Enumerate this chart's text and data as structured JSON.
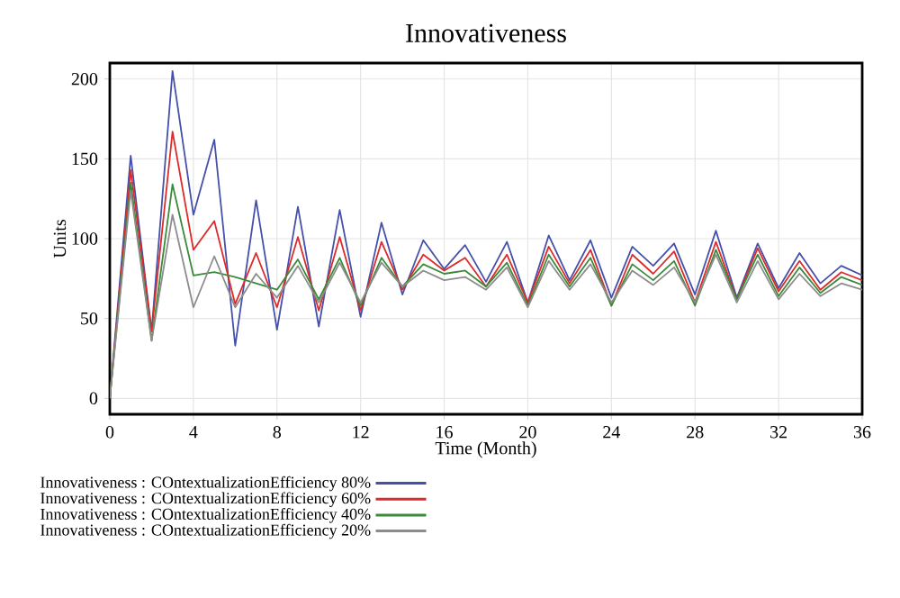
{
  "chart_data": {
    "type": "line",
    "title": "Innovativeness",
    "xlabel": "Time (Month)",
    "ylabel": "Units",
    "x": [
      0,
      1,
      2,
      3,
      4,
      5,
      6,
      7,
      8,
      9,
      10,
      11,
      12,
      13,
      14,
      15,
      16,
      17,
      18,
      19,
      20,
      21,
      22,
      23,
      24,
      25,
      26,
      27,
      28,
      29,
      30,
      31,
      32,
      33,
      34,
      35,
      36
    ],
    "series": [
      {
        "name": "Innovativeness : COntextualizationEfficiency 80%",
        "color": "#4450aa",
        "values": [
          0,
          152,
          42,
          205,
          115,
          162,
          33,
          124,
          43,
          120,
          45,
          118,
          51,
          110,
          65,
          99,
          81,
          96,
          73,
          98,
          60,
          102,
          74,
          99,
          63,
          95,
          83,
          97,
          65,
          105,
          63,
          97,
          69,
          91,
          72,
          83,
          77
        ]
      },
      {
        "name": "Innovativeness : COntextualizationEfficiency 60%",
        "color": "#dd2a2a",
        "values": [
          0,
          143,
          42,
          167,
          93,
          111,
          59,
          91,
          57,
          101,
          55,
          101,
          55,
          98,
          68,
          90,
          80,
          88,
          70,
          90,
          60,
          95,
          72,
          93,
          58,
          90,
          78,
          92,
          60,
          98,
          62,
          94,
          67,
          86,
          68,
          79,
          74
        ]
      },
      {
        "name": "Innovativeness : COntextualizationEfficiency 40%",
        "color": "#3a8a3a",
        "values": [
          0,
          135,
          36,
          134,
          77,
          79,
          76,
          72,
          68,
          87,
          62,
          88,
          58,
          88,
          70,
          84,
          78,
          80,
          70,
          85,
          58,
          90,
          70,
          88,
          58,
          84,
          74,
          86,
          58,
          93,
          62,
          90,
          64,
          82,
          66,
          76,
          71
        ]
      },
      {
        "name": "Innovativeness : COntextualizationEfficiency 20%",
        "color": "#8c8c8c",
        "values": [
          0,
          130,
          36,
          115,
          57,
          89,
          57,
          78,
          63,
          83,
          60,
          85,
          60,
          85,
          70,
          80,
          74,
          76,
          68,
          82,
          57,
          86,
          68,
          84,
          60,
          80,
          71,
          82,
          60,
          90,
          60,
          86,
          62,
          78,
          64,
          72,
          68
        ]
      }
    ],
    "xlim": [
      0,
      36
    ],
    "ylim": [
      -10,
      210
    ],
    "xticks": [
      0,
      4,
      8,
      12,
      16,
      20,
      24,
      28,
      32,
      36
    ],
    "yticks": [
      0,
      50,
      100,
      150,
      200
    ],
    "grid": true,
    "legend": "bottom",
    "marker": "none",
    "line_style": "solid"
  }
}
